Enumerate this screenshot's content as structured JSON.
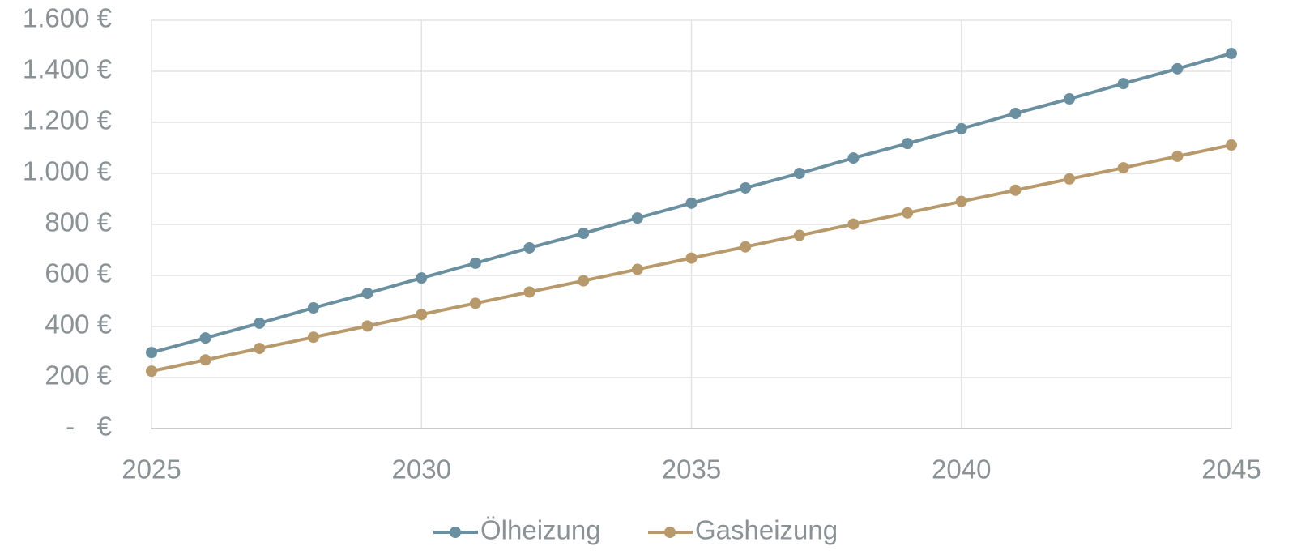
{
  "chart_data": {
    "type": "line",
    "x": [
      2025,
      2026,
      2027,
      2028,
      2029,
      2030,
      2031,
      2032,
      2033,
      2034,
      2035,
      2036,
      2037,
      2038,
      2039,
      2040,
      2041,
      2042,
      2043,
      2044,
      2045
    ],
    "series": [
      {
        "name": "Ölheizung",
        "color": "#6a8fa0",
        "values": [
          298,
          355,
          413,
          473,
          530,
          590,
          648,
          708,
          765,
          825,
          883,
          943,
          1000,
          1060,
          1117,
          1175,
          1235,
          1292,
          1352,
          1410,
          1470
        ]
      },
      {
        "name": "Gasheizung",
        "color": "#b8996b",
        "values": [
          225,
          269,
          314,
          358,
          402,
          447,
          491,
          535,
          579,
          624,
          668,
          712,
          757,
          801,
          845,
          890,
          934,
          978,
          1022,
          1067,
          1111
        ]
      }
    ],
    "xlim": [
      2025,
      2045
    ],
    "xticks": [
      2025,
      2030,
      2035,
      2040,
      2045
    ],
    "ylim": [
      0,
      1600
    ],
    "yticks": [
      {
        "value": 0,
        "label": "-   €"
      },
      {
        "value": 200,
        "label": "200 €"
      },
      {
        "value": 400,
        "label": "400 €"
      },
      {
        "value": 600,
        "label": "600 €"
      },
      {
        "value": 800,
        "label": "800 €"
      },
      {
        "value": 1000,
        "label": "1.000 €"
      },
      {
        "value": 1200,
        "label": "1.200 €"
      },
      {
        "value": 1400,
        "label": "1.400 €"
      },
      {
        "value": 1600,
        "label": "1.600 €"
      }
    ],
    "grid": true,
    "legend": "bottom"
  }
}
